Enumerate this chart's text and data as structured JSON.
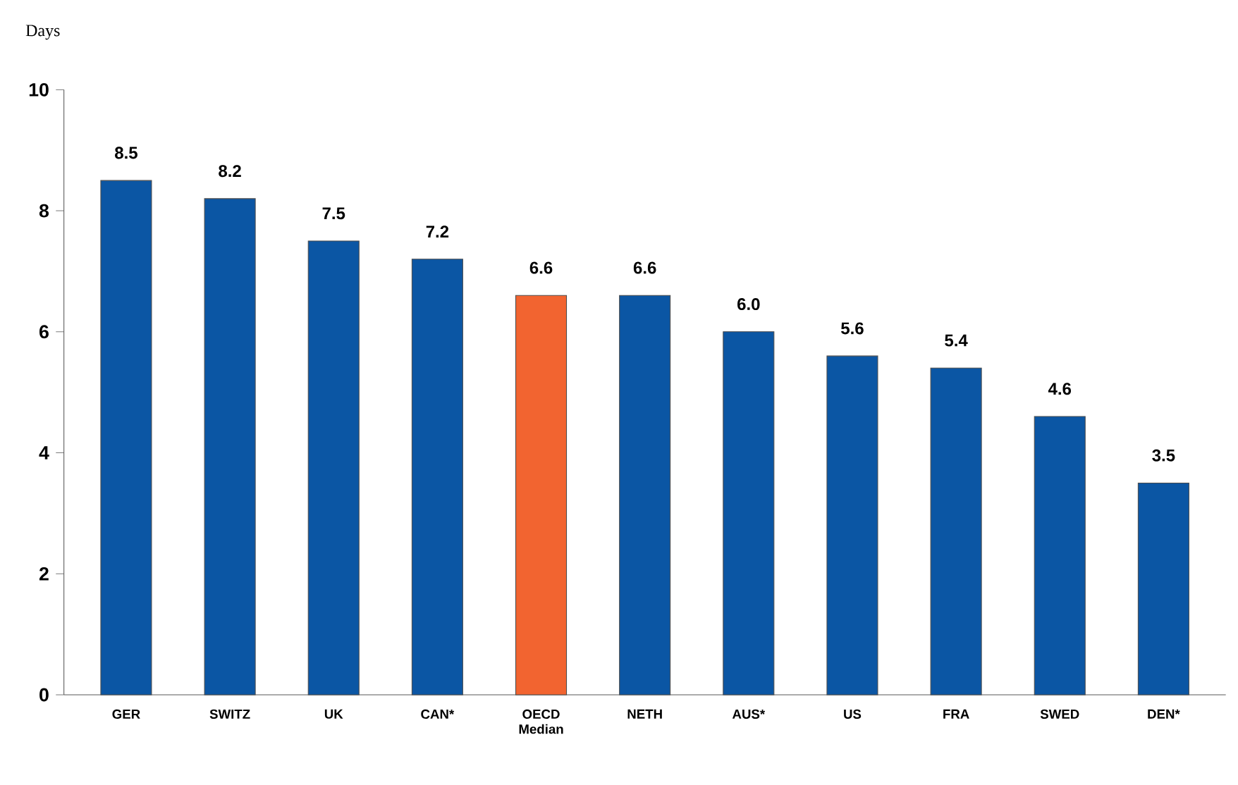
{
  "chart_data": {
    "type": "bar",
    "ylabel": "Days",
    "categories": [
      "GER",
      "SWITZ",
      "UK",
      "CAN*",
      "OECD Median",
      "NETH",
      "AUS*",
      "US",
      "FRA",
      "SWED",
      "DEN*"
    ],
    "values": [
      8.5,
      8.2,
      7.5,
      7.2,
      6.6,
      6.6,
      6.0,
      5.6,
      5.4,
      4.6,
      3.5
    ],
    "colors": [
      "#0b56a4",
      "#0b56a4",
      "#0b56a4",
      "#0b56a4",
      "#f26430",
      "#0b56a4",
      "#0b56a4",
      "#0b56a4",
      "#0b56a4",
      "#0b56a4",
      "#0b56a4"
    ],
    "value_labels": [
      "8.5",
      "8.2",
      "7.5",
      "7.2",
      "6.6",
      "6.6",
      "6.0",
      "5.6",
      "5.4",
      "4.6",
      "3.5"
    ],
    "ylim": [
      0,
      10
    ],
    "yticks": [
      0,
      2,
      4,
      6,
      8,
      10
    ],
    "grid": false
  }
}
